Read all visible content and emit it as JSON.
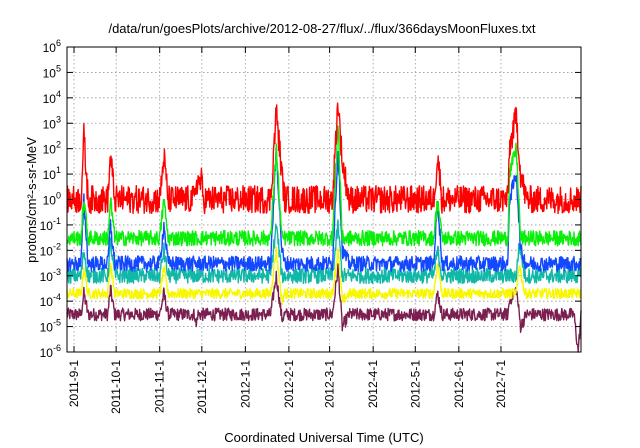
{
  "chart_data": {
    "type": "line",
    "title": "/data/run/goesPlots/archive/2012-08-27/flux/../flux/366daysMoonFluxes.txt",
    "xlabel": "Coordinated Universal Time (UTC)",
    "ylabel": "protons/cm²-s-sr-MeV",
    "x_range": [
      "2011-08-27",
      "2012-08-27"
    ],
    "y_scale": "log",
    "ylim": [
      1e-06,
      1000000.0
    ],
    "grid": true,
    "legend": "none",
    "x_ticks": [
      "2011-9-1",
      "2011-10-1",
      "2011-11-1",
      "2011-12-1",
      "2012-1-1",
      "2012-2-1",
      "2012-3-1",
      "2012-4-1",
      "2012-5-1",
      "2012-6-1",
      "2012-7-1"
    ],
    "y_ticks": [
      {
        "value": 1e-06,
        "base": "10",
        "exp": "-6"
      },
      {
        "value": 1e-05,
        "base": "10",
        "exp": "-5"
      },
      {
        "value": 0.0001,
        "base": "10",
        "exp": "-4"
      },
      {
        "value": 0.001,
        "base": "10",
        "exp": "-3"
      },
      {
        "value": 0.01,
        "base": "10",
        "exp": "-2"
      },
      {
        "value": 0.1,
        "base": "10",
        "exp": "-1"
      },
      {
        "value": 1,
        "base": "10",
        "exp": "0"
      },
      {
        "value": 10.0,
        "base": "10",
        "exp": "1"
      },
      {
        "value": 100.0,
        "base": "10",
        "exp": "2"
      },
      {
        "value": 1000.0,
        "base": "10",
        "exp": "3"
      },
      {
        "value": 10000.0,
        "base": "10",
        "exp": "4"
      },
      {
        "value": 100000.0,
        "base": "10",
        "exp": "5"
      },
      {
        "value": 1000000.0,
        "base": "10",
        "exp": "6"
      }
    ],
    "series": [
      {
        "color": "#7a1f4f",
        "values": [
          [
            "2011-08-27",
            3e-05
          ],
          [
            "2011-09-06",
            3e-05
          ],
          [
            "2011-09-08",
            0.0002
          ],
          [
            "2011-09-11",
            3e-05
          ],
          [
            "2011-09-25",
            3e-05
          ],
          [
            "2011-09-27",
            0.0003
          ],
          [
            "2011-09-30",
            3e-05
          ],
          [
            "2011-11-01",
            3e-05
          ],
          [
            "2011-11-04",
            0.0002
          ],
          [
            "2011-11-07",
            3e-05
          ],
          [
            "2011-11-26",
            3e-05
          ],
          [
            "2011-11-27",
            1e-05
          ],
          [
            "2011-11-28",
            3e-05
          ],
          [
            "2012-01-19",
            3e-05
          ],
          [
            "2012-01-23",
            0.001
          ],
          [
            "2012-01-27",
            2e-05
          ],
          [
            "2012-01-29",
            3e-05
          ],
          [
            "2012-03-03",
            3e-05
          ],
          [
            "2012-03-07",
            0.002
          ],
          [
            "2012-03-10",
            1e-05
          ],
          [
            "2012-03-15",
            3e-05
          ],
          [
            "2012-05-14",
            3e-05
          ],
          [
            "2012-05-17",
            0.0002
          ],
          [
            "2012-05-20",
            3e-05
          ],
          [
            "2012-07-06",
            3e-05
          ],
          [
            "2012-07-07",
            0.0001
          ],
          [
            "2012-07-12",
            0.0003
          ],
          [
            "2012-07-15",
            1e-05
          ],
          [
            "2012-07-19",
            3e-05
          ],
          [
            "2012-08-22",
            3e-05
          ],
          [
            "2012-08-25",
            1e-06
          ],
          [
            "2012-08-27",
            3e-05
          ]
        ]
      },
      {
        "color": "#f7f700",
        "values": [
          [
            "2011-08-27",
            0.0002
          ],
          [
            "2011-09-06",
            0.0002
          ],
          [
            "2011-09-08",
            0.002
          ],
          [
            "2011-09-11",
            0.0002
          ],
          [
            "2011-09-25",
            0.0002
          ],
          [
            "2011-09-27",
            0.003
          ],
          [
            "2011-09-30",
            0.0002
          ],
          [
            "2011-11-01",
            0.0002
          ],
          [
            "2011-11-04",
            0.002
          ],
          [
            "2011-11-07",
            0.0002
          ],
          [
            "2012-01-19",
            0.0002
          ],
          [
            "2012-01-23",
            0.01
          ],
          [
            "2012-01-27",
            0.0001
          ],
          [
            "2012-01-29",
            0.0002
          ],
          [
            "2012-03-03",
            0.0002
          ],
          [
            "2012-03-07",
            0.01
          ],
          [
            "2012-03-10",
            0.0001
          ],
          [
            "2012-03-15",
            0.0002
          ],
          [
            "2012-05-14",
            0.0002
          ],
          [
            "2012-05-17",
            0.003
          ],
          [
            "2012-05-20",
            0.0002
          ],
          [
            "2012-07-12",
            0.0002
          ],
          [
            "2012-07-14",
            0.003
          ],
          [
            "2012-07-18",
            0.0002
          ],
          [
            "2012-08-27",
            0.0002
          ]
        ]
      },
      {
        "color": "#11b8a8",
        "values": [
          [
            "2011-08-27",
            0.001
          ],
          [
            "2011-09-06",
            0.001
          ],
          [
            "2011-09-08",
            0.01
          ],
          [
            "2011-09-11",
            0.001
          ],
          [
            "2011-09-25",
            0.001
          ],
          [
            "2011-09-27",
            0.02
          ],
          [
            "2011-09-30",
            0.001
          ],
          [
            "2011-11-01",
            0.001
          ],
          [
            "2011-11-04",
            0.01
          ],
          [
            "2011-11-07",
            0.001
          ],
          [
            "2012-01-19",
            0.001
          ],
          [
            "2012-01-23",
            0.1
          ],
          [
            "2012-01-27",
            0.001
          ],
          [
            "2012-03-03",
            0.001
          ],
          [
            "2012-03-07",
            0.1
          ],
          [
            "2012-03-10",
            0.001
          ],
          [
            "2012-05-14",
            0.001
          ],
          [
            "2012-05-17",
            0.01
          ],
          [
            "2012-05-20",
            0.001
          ],
          [
            "2012-07-12",
            0.001
          ],
          [
            "2012-07-14",
            0.02
          ],
          [
            "2012-07-18",
            0.001
          ],
          [
            "2012-08-27",
            0.001
          ]
        ]
      },
      {
        "color": "#1448ff",
        "values": [
          [
            "2011-08-27",
            0.003
          ],
          [
            "2011-09-06",
            0.003
          ],
          [
            "2011-09-08",
            1
          ],
          [
            "2011-09-11",
            0.003
          ],
          [
            "2011-09-25",
            0.003
          ],
          [
            "2011-09-27",
            0.1
          ],
          [
            "2011-09-30",
            0.003
          ],
          [
            "2011-11-01",
            0.003
          ],
          [
            "2011-11-04",
            0.1
          ],
          [
            "2011-11-07",
            0.003
          ],
          [
            "2012-01-19",
            0.003
          ],
          [
            "2012-01-23",
            100.0
          ],
          [
            "2012-01-27",
            0.01
          ],
          [
            "2012-01-29",
            0.003
          ],
          [
            "2012-03-03",
            0.003
          ],
          [
            "2012-03-07",
            100.0
          ],
          [
            "2012-03-10",
            0.01
          ],
          [
            "2012-03-15",
            0.003
          ],
          [
            "2012-05-14",
            0.003
          ],
          [
            "2012-05-17",
            1
          ],
          [
            "2012-05-20",
            0.003
          ],
          [
            "2012-07-06",
            0.003
          ],
          [
            "2012-07-07",
            1
          ],
          [
            "2012-07-12",
            10
          ],
          [
            "2012-07-15",
            0.01
          ],
          [
            "2012-07-19",
            0.003
          ],
          [
            "2012-08-27",
            0.003
          ]
        ]
      },
      {
        "color": "#0aef0a",
        "values": [
          [
            "2011-08-27",
            0.03
          ],
          [
            "2011-09-06",
            0.03
          ],
          [
            "2011-09-08",
            1
          ],
          [
            "2011-09-11",
            0.03
          ],
          [
            "2011-09-25",
            0.03
          ],
          [
            "2011-09-27",
            1
          ],
          [
            "2011-09-30",
            0.03
          ],
          [
            "2011-11-01",
            0.03
          ],
          [
            "2011-11-04",
            1
          ],
          [
            "2011-11-07",
            0.03
          ],
          [
            "2012-01-19",
            0.03
          ],
          [
            "2012-01-23",
            100.0
          ],
          [
            "2012-01-27",
            0.03
          ],
          [
            "2012-03-03",
            0.03
          ],
          [
            "2012-03-07",
            1000.0
          ],
          [
            "2012-03-10",
            0.03
          ],
          [
            "2012-05-14",
            0.03
          ],
          [
            "2012-05-17",
            1
          ],
          [
            "2012-05-20",
            0.03
          ],
          [
            "2012-07-06",
            0.03
          ],
          [
            "2012-07-07",
            10
          ],
          [
            "2012-07-12",
            100.0
          ],
          [
            "2012-07-15",
            0.03
          ],
          [
            "2012-08-27",
            0.03
          ]
        ]
      },
      {
        "color": "#ff0000",
        "values": [
          [
            "2011-08-27",
            1
          ],
          [
            "2011-09-06",
            1
          ],
          [
            "2011-09-08",
            300
          ],
          [
            "2011-09-11",
            1
          ],
          [
            "2011-09-25",
            1
          ],
          [
            "2011-09-27",
            50
          ],
          [
            "2011-09-30",
            1
          ],
          [
            "2011-11-01",
            1
          ],
          [
            "2011-11-04",
            50
          ],
          [
            "2011-11-07",
            1
          ],
          [
            "2011-11-26",
            1
          ],
          [
            "2011-11-27",
            5
          ],
          [
            "2011-12-01",
            5
          ],
          [
            "2011-12-02",
            1
          ],
          [
            "2012-01-19",
            1
          ],
          [
            "2012-01-23",
            3000
          ],
          [
            "2012-01-27",
            10
          ],
          [
            "2012-01-29",
            1
          ],
          [
            "2012-03-03",
            1
          ],
          [
            "2012-03-07",
            8000
          ],
          [
            "2012-03-10",
            30
          ],
          [
            "2012-03-15",
            1
          ],
          [
            "2012-05-14",
            1
          ],
          [
            "2012-05-17",
            50
          ],
          [
            "2012-05-20",
            1
          ],
          [
            "2012-07-06",
            1
          ],
          [
            "2012-07-07",
            100
          ],
          [
            "2012-07-12",
            2000
          ],
          [
            "2012-07-15",
            10
          ],
          [
            "2012-07-19",
            1
          ],
          [
            "2012-08-27",
            1
          ]
        ]
      }
    ]
  }
}
